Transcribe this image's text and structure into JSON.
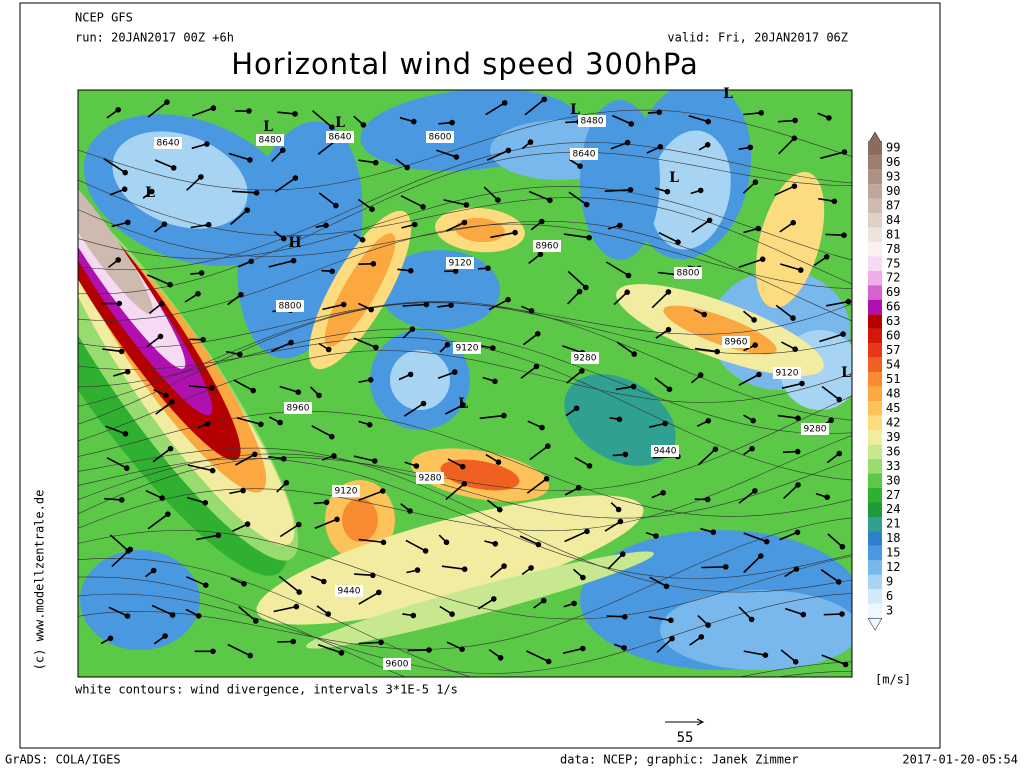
{
  "header": {
    "model": "NCEP GFS",
    "run": "run: 20JAN2017 00Z +6h",
    "valid": "valid: Fri, 20JAN2017 06Z",
    "title": "Horizontal wind speed 300hPa"
  },
  "map": {
    "contour_labels": [
      "8640",
      "8480",
      "8640",
      "8600",
      "8480",
      "8640",
      "8960",
      "9120",
      "8800",
      "8800",
      "9120",
      "8960",
      "9280",
      "9120",
      "8960",
      "9280",
      "9440",
      "9280",
      "9120",
      "9440",
      "9600"
    ],
    "pressure_centers": [
      "L",
      "L",
      "L",
      "H",
      "L",
      "L",
      "L",
      "L",
      "L"
    ],
    "note": "white contours: wind divergence, intervals 3*1E-5 1/s",
    "watermark": "(c) www.modellzentrale.de"
  },
  "colorbar": {
    "labels": [
      "99",
      "96",
      "93",
      "90",
      "87",
      "84",
      "81",
      "78",
      "75",
      "72",
      "69",
      "66",
      "63",
      "60",
      "57",
      "54",
      "51",
      "48",
      "45",
      "42",
      "39",
      "36",
      "33",
      "30",
      "27",
      "24",
      "21",
      "18",
      "15",
      "12",
      "9",
      "6",
      "3"
    ],
    "colors": [
      "#8c6b5e",
      "#9c7d70",
      "#ae9184",
      "#bfa59a",
      "#cfbab0",
      "#dfcfc7",
      "#eee4df",
      "#faf0ee",
      "#f6d9f3",
      "#eeaee8",
      "#d860d0",
      "#b010b0",
      "#b40000",
      "#d8150a",
      "#e83818",
      "#f06020",
      "#f88a30",
      "#fba840",
      "#fcc35a",
      "#fddc80",
      "#f2eca0",
      "#c8e890",
      "#98dc70",
      "#5cc848",
      "#30b030",
      "#1c9a3c",
      "#30a090",
      "#2e7fd0",
      "#4a98e0",
      "#78b8ec",
      "#a8d4f4",
      "#d0eaf9",
      "#ecf8fd"
    ],
    "unit": "[m/s]"
  },
  "vector_reference": "55",
  "footer": {
    "left": "GrADS: COLA/IGES",
    "center": "data: NCEP; graphic: Janek Zimmer",
    "right": "2017-01-20-05:54"
  }
}
